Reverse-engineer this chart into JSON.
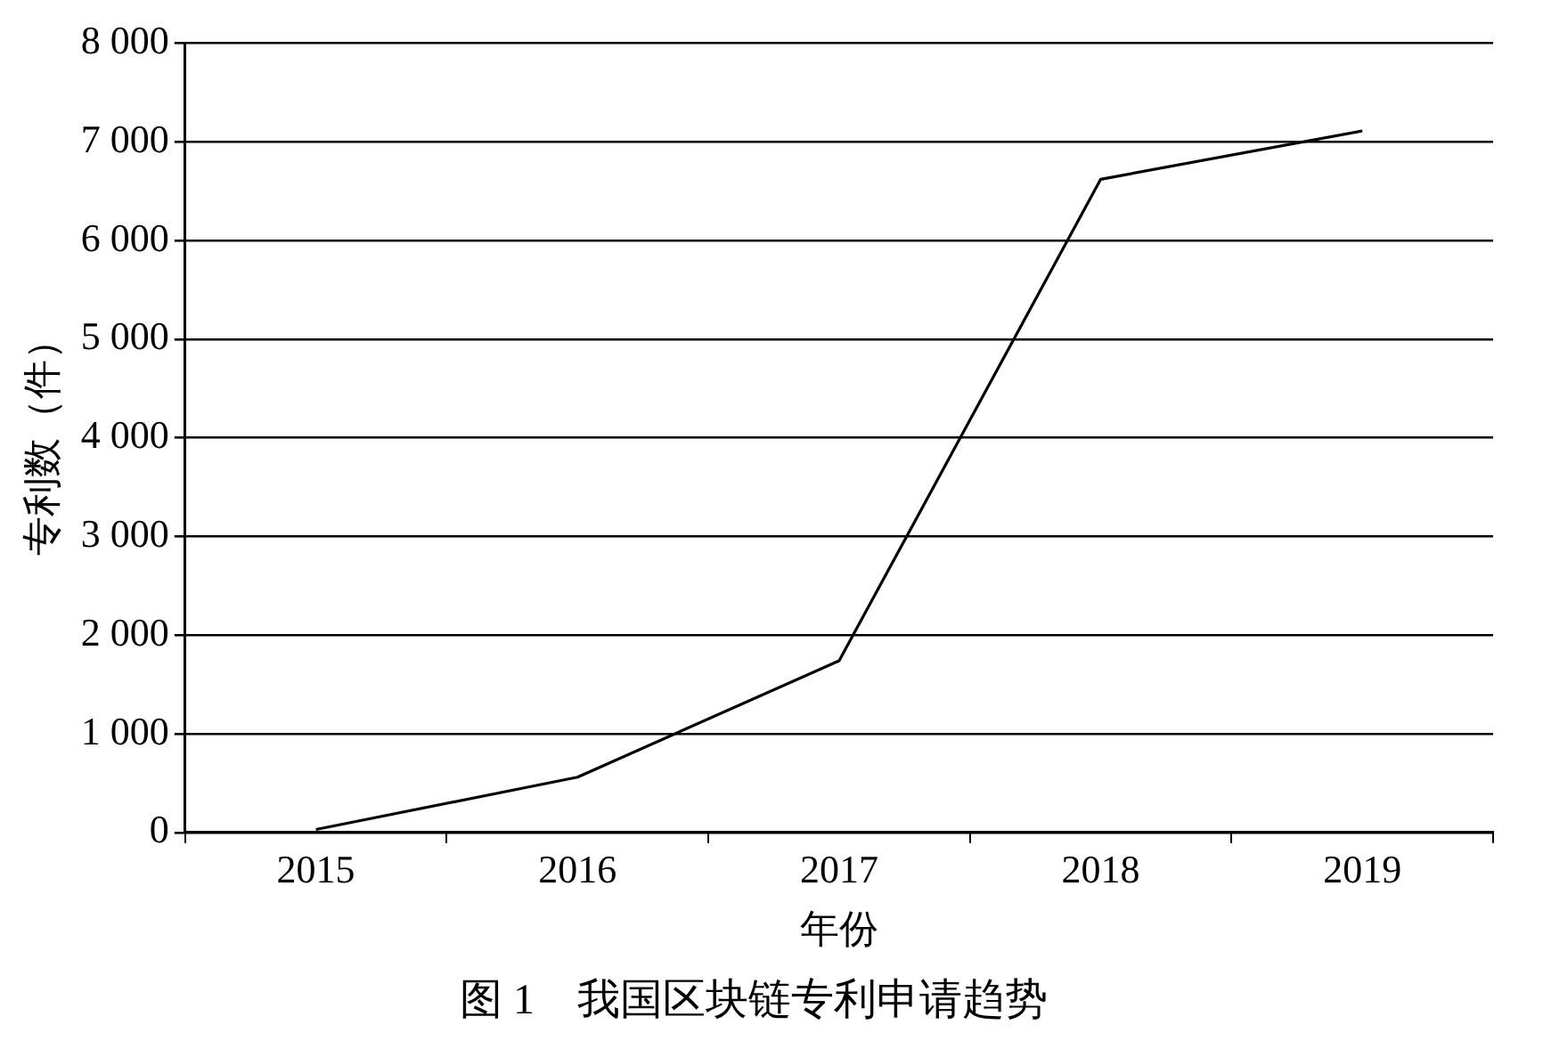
{
  "chart_data": {
    "type": "line",
    "title": "图 1　我国区块链专利申请趋势",
    "xlabel": "年份",
    "ylabel": "专利数（件）",
    "categories": [
      "2015",
      "2016",
      "2017",
      "2018",
      "2019"
    ],
    "series": [
      {
        "color": "#000000",
        "values": [
          30,
          560,
          1740,
          6620,
          7110
        ]
      }
    ],
    "ylim": [
      0,
      8000
    ],
    "yticks": [
      0,
      {
        "value": 1000,
        "label": "1 000"
      },
      {
        "value": 2000,
        "label": "2 000"
      },
      {
        "value": 3000,
        "label": "3 000"
      },
      {
        "value": 4000,
        "label": "4 000"
      },
      {
        "value": 5000,
        "label": "5 000"
      },
      {
        "value": 6000,
        "label": "6 000"
      },
      {
        "value": 7000,
        "label": "7 000"
      },
      {
        "value": 8000,
        "label": "8 000"
      }
    ],
    "grid": "y",
    "legend": false,
    "marker": "none",
    "line_style": "solid"
  }
}
